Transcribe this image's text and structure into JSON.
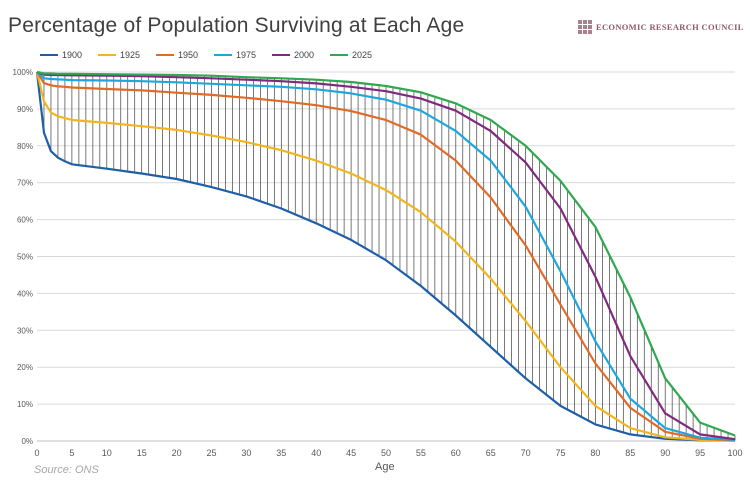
{
  "title": "Percentage of Population Surviving at Each Age",
  "brand": "ECONOMIC RESEARCH COUNCIL",
  "source": "Source: ONS",
  "chart_data": {
    "type": "line",
    "xlabel": "Age",
    "ylabel": "",
    "xlim": [
      0,
      100
    ],
    "ylim": [
      0,
      100
    ],
    "x_ticks": [
      0,
      5,
      10,
      15,
      20,
      25,
      30,
      35,
      40,
      45,
      50,
      55,
      60,
      65,
      70,
      75,
      80,
      85,
      90,
      95,
      100
    ],
    "y_ticks": [
      0,
      10,
      20,
      30,
      40,
      50,
      60,
      70,
      80,
      90,
      100
    ],
    "y_tick_labels": [
      "0%",
      "10%",
      "20%",
      "30%",
      "40%",
      "50%",
      "60%",
      "70%",
      "80%",
      "90%",
      "100%"
    ],
    "grid": "horizontal",
    "legend_position": "top-left",
    "drop_lines": "vertical lines between 1900 and 2025 at each year of age",
    "series": [
      {
        "name": "1900",
        "color": "#1f5fa8",
        "x": [
          0,
          1,
          2,
          3,
          4,
          5,
          10,
          15,
          20,
          25,
          30,
          35,
          40,
          45,
          50,
          55,
          60,
          65,
          70,
          75,
          80,
          85,
          90,
          95,
          100
        ],
        "values": [
          100,
          83.5,
          78.5,
          76.8,
          75.8,
          75,
          73.8,
          72.5,
          71,
          68.8,
          66.3,
          63,
          59,
          54.5,
          49,
          42,
          34,
          25.5,
          17,
          9.5,
          4.5,
          1.8,
          0.6,
          0.2,
          0.1
        ]
      },
      {
        "name": "1925",
        "color": "#f2b51e",
        "x": [
          0,
          1,
          2,
          3,
          4,
          5,
          10,
          15,
          20,
          25,
          30,
          35,
          40,
          45,
          50,
          55,
          60,
          65,
          70,
          75,
          80,
          85,
          90,
          95,
          100
        ],
        "values": [
          100,
          92,
          89,
          88,
          87.5,
          87,
          86.2,
          85.3,
          84.3,
          82.8,
          81,
          78.8,
          76,
          72.5,
          68,
          62,
          54,
          44,
          32.5,
          20,
          9.5,
          3.5,
          1,
          0.3,
          0.1
        ]
      },
      {
        "name": "1950",
        "color": "#e06a26",
        "x": [
          0,
          1,
          2,
          3,
          4,
          5,
          10,
          15,
          20,
          25,
          30,
          35,
          40,
          45,
          50,
          55,
          60,
          65,
          70,
          75,
          80,
          85,
          90,
          95,
          100
        ],
        "values": [
          100,
          97,
          96.4,
          96.1,
          96,
          95.8,
          95.4,
          95,
          94.4,
          93.8,
          93,
          92.1,
          91,
          89.4,
          87,
          83,
          76,
          66,
          53,
          37,
          21,
          9,
          2.5,
          0.6,
          0.2
        ]
      },
      {
        "name": "1975",
        "color": "#1fa7dd",
        "x": [
          0,
          1,
          2,
          3,
          4,
          5,
          10,
          15,
          20,
          25,
          30,
          35,
          40,
          45,
          50,
          55,
          60,
          65,
          70,
          75,
          80,
          85,
          90,
          95,
          100
        ],
        "values": [
          100,
          98.3,
          98.1,
          98,
          97.9,
          97.8,
          97.7,
          97.5,
          97.2,
          96.8,
          96.4,
          96,
          95.3,
          94.2,
          92.5,
          89.5,
          84,
          76,
          63.5,
          46,
          27,
          11.5,
          3.5,
          0.9,
          0.3
        ]
      },
      {
        "name": "2000",
        "color": "#7f2a7f",
        "x": [
          0,
          1,
          2,
          3,
          4,
          5,
          10,
          15,
          20,
          25,
          30,
          35,
          40,
          45,
          50,
          55,
          60,
          65,
          70,
          75,
          80,
          85,
          90,
          95,
          100
        ],
        "values": [
          100,
          99.3,
          99.2,
          99.2,
          99.1,
          99.1,
          99,
          98.9,
          98.6,
          98.3,
          97.9,
          97.5,
          96.9,
          96,
          94.8,
          92.8,
          89.5,
          84,
          75.5,
          63,
          44.5,
          23,
          7.5,
          1.8,
          0.5
        ]
      },
      {
        "name": "2025",
        "color": "#2fa84f",
        "x": [
          0,
          1,
          2,
          3,
          4,
          5,
          10,
          15,
          20,
          25,
          30,
          35,
          40,
          45,
          50,
          55,
          60,
          65,
          70,
          75,
          80,
          85,
          90,
          95,
          100
        ],
        "values": [
          100,
          99.6,
          99.6,
          99.5,
          99.5,
          99.5,
          99.4,
          99.3,
          99.2,
          99,
          98.6,
          98.3,
          97.9,
          97.3,
          96.2,
          94.5,
          91.5,
          87,
          80,
          70.5,
          58,
          39,
          17,
          5,
          1.5
        ]
      }
    ]
  }
}
